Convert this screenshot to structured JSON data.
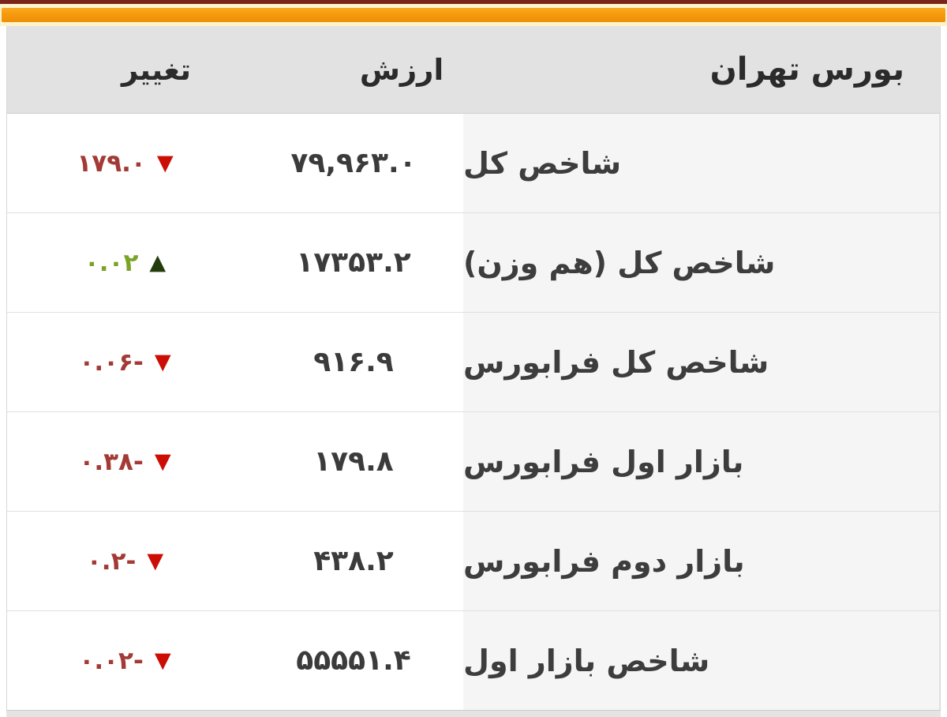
{
  "accent": {
    "top_line_color": "#7a241a",
    "bar_color": "#f79a0e",
    "glow_color": "#fcf3cf"
  },
  "table": {
    "header": {
      "name": "بورس تهران",
      "value": "ارزش",
      "change": "تغییر"
    },
    "colors": {
      "down_text": "#a33a35",
      "down_arrow": "#cb0d04",
      "up_text": "#7aa428",
      "up_arrow": "#243c0c",
      "header_bg": "#e2e2e2",
      "name_col_bg": "#f5f5f5"
    },
    "rows": [
      {
        "name": "شاخص کل",
        "value": "۷۹,۹۶۳.۰",
        "change": "۱۷۹.۰",
        "trend": "down",
        "arrow": "▼"
      },
      {
        "name": "شاخص کل (هم وزن)",
        "value": "۱۷۳۵۳.۲",
        "change": "۰.۰۲",
        "trend": "up",
        "arrow": "▲"
      },
      {
        "name": "شاخص کل فرابورس",
        "value": "۹۱۶.۹",
        "change": "۰.۰۶-",
        "trend": "down",
        "arrow": "▼"
      },
      {
        "name": "بازار اول فرابورس",
        "value": "۱۷۹.۸",
        "change": "۰.۳۸-",
        "trend": "down",
        "arrow": "▼"
      },
      {
        "name": "بازار دوم فرابورس",
        "value": "۴۳۸.۲",
        "change": "۰.۲-",
        "trend": "down",
        "arrow": "▼"
      },
      {
        "name": "شاخص بازار اول",
        "value": "۵۵۵۵۱.۴",
        "change": "۰.۰۲-",
        "trend": "down",
        "arrow": "▼"
      }
    ]
  }
}
